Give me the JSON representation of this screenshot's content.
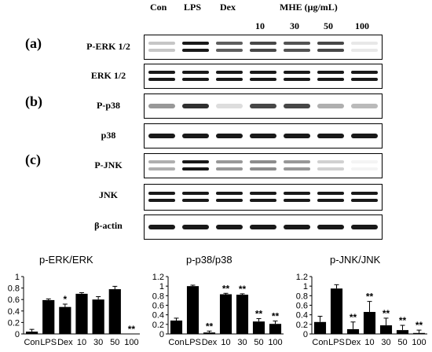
{
  "lanes": [
    "Con",
    "LPS",
    "Dex"
  ],
  "mhe_group_label": "MHE (μg/mL)",
  "mhe_concentrations": [
    "10",
    "30",
    "50",
    "100"
  ],
  "panels": [
    "(a)",
    "(b)",
    "(c)"
  ],
  "blots": [
    {
      "label": "P-ERK 1/2",
      "intensity": [
        0.25,
        1.0,
        0.7,
        0.8,
        0.75,
        0.8,
        0.1
      ],
      "double": true
    },
    {
      "label": "ERK 1/2",
      "intensity": [
        1,
        1,
        1,
        1,
        1,
        1,
        1
      ],
      "double": true
    },
    {
      "label": "P-p38",
      "intensity": [
        0.45,
        0.9,
        0.15,
        0.8,
        0.8,
        0.35,
        0.3
      ],
      "double": false
    },
    {
      "label": "p38",
      "intensity": [
        1,
        1,
        1,
        1,
        1,
        1,
        1
      ],
      "double": false
    },
    {
      "label": "P-JNK",
      "intensity": [
        0.35,
        1.0,
        0.45,
        0.5,
        0.45,
        0.2,
        0.05
      ],
      "double": true
    },
    {
      "label": "JNK",
      "intensity": [
        1,
        1,
        1,
        1,
        1,
        1,
        1
      ],
      "double": true
    },
    {
      "label": "β-actin",
      "intensity": [
        1,
        1,
        1,
        1,
        1,
        1,
        1
      ],
      "double": false
    }
  ],
  "chart_data": [
    {
      "type": "bar",
      "title": "p-ERK/ERK",
      "categories": [
        "Con",
        "LPS",
        "Dex",
        "10",
        "30",
        "50",
        "100"
      ],
      "values": [
        0.04,
        0.59,
        0.47,
        0.7,
        0.6,
        0.78,
        0.0
      ],
      "errors": [
        0.04,
        0.02,
        0.05,
        0.02,
        0.05,
        0.05,
        0.0
      ],
      "significance": [
        "",
        "",
        "*",
        "",
        "",
        "",
        "**"
      ],
      "yticks": [
        "0",
        "0.2",
        "0.4",
        "0.6",
        "0.8",
        "1"
      ],
      "ylim": [
        0,
        1
      ]
    },
    {
      "type": "bar",
      "title": "p-p38/p38",
      "categories": [
        "Con",
        "LPS",
        "Dex",
        "10",
        "30",
        "50",
        "100"
      ],
      "values": [
        0.28,
        1.0,
        0.03,
        0.83,
        0.82,
        0.26,
        0.21
      ],
      "errors": [
        0.05,
        0.02,
        0.03,
        0.02,
        0.02,
        0.06,
        0.06
      ],
      "significance": [
        "",
        "",
        "**",
        "**",
        "**",
        "**",
        "**"
      ],
      "yticks": [
        "0",
        "0.2",
        "0.4",
        "0.6",
        "0.8",
        "1",
        "1.2"
      ],
      "ylim": [
        0,
        1.2
      ]
    },
    {
      "type": "bar",
      "title": "p-JNK/JNK",
      "categories": [
        "Con",
        "LPS",
        "Dex",
        "10",
        "30",
        "50",
        "100"
      ],
      "values": [
        0.25,
        0.95,
        0.1,
        0.46,
        0.18,
        0.08,
        0.02
      ],
      "errors": [
        0.12,
        0.08,
        0.15,
        0.22,
        0.15,
        0.1,
        0.06
      ],
      "significance": [
        "",
        "",
        "**",
        "**",
        "**",
        "**",
        "**"
      ],
      "yticks": [
        "0",
        "0.2",
        "0.4",
        "0.6",
        "0.8",
        "1",
        "1.2"
      ],
      "ylim": [
        0,
        1.2
      ]
    }
  ]
}
